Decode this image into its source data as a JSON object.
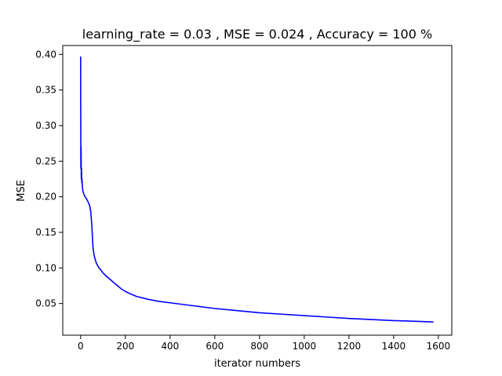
{
  "chart_data": {
    "type": "line",
    "title": "learning_rate = 0.03 , MSE = 0.024 , Accuracy = 100 %",
    "xlabel": "iterator numbers",
    "ylabel": "MSE",
    "xlim": [
      -80,
      1660
    ],
    "ylim": [
      0.0055,
      0.4125
    ],
    "xticks": [
      0,
      200,
      400,
      600,
      800,
      1000,
      1200,
      1400,
      1600
    ],
    "xtick_labels": [
      "0",
      "200",
      "400",
      "600",
      "800",
      "1000",
      "1200",
      "1400",
      "1600"
    ],
    "yticks": [
      0.05,
      0.1,
      0.15,
      0.2,
      0.25,
      0.3,
      0.35,
      0.4
    ],
    "ytick_labels": [
      "0.05",
      "0.10",
      "0.15",
      "0.20",
      "0.25",
      "0.30",
      "0.35",
      "0.40"
    ],
    "grid": false,
    "series": [
      {
        "color": "#0000ff",
        "x": [
          0,
          1,
          2,
          3,
          4,
          5,
          6,
          8,
          10,
          15,
          20,
          30,
          40,
          45,
          50,
          55,
          60,
          65,
          70,
          80,
          90,
          100,
          120,
          150,
          180,
          200,
          220,
          250,
          300,
          350,
          400,
          500,
          600,
          700,
          800,
          900,
          1000,
          1100,
          1200,
          1300,
          1400,
          1500,
          1578
        ],
        "y": [
          0.397,
          0.24,
          0.27,
          0.225,
          0.24,
          0.22,
          0.225,
          0.213,
          0.208,
          0.203,
          0.2,
          0.195,
          0.188,
          0.18,
          0.16,
          0.13,
          0.118,
          0.112,
          0.107,
          0.101,
          0.097,
          0.093,
          0.087,
          0.079,
          0.071,
          0.067,
          0.064,
          0.06,
          0.056,
          0.053,
          0.051,
          0.047,
          0.043,
          0.04,
          0.037,
          0.035,
          0.033,
          0.031,
          0.029,
          0.0275,
          0.026,
          0.025,
          0.024
        ]
      }
    ]
  }
}
